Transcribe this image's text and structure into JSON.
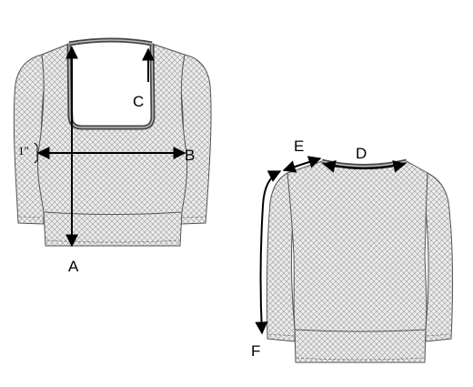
{
  "labels": {
    "a": "A",
    "b": "B",
    "c": "C",
    "d": "D",
    "e": "E",
    "f": "F",
    "one_inch": "1\""
  },
  "colors": {
    "outline": "#555555",
    "fabric": "#e9e9e9",
    "mesh": "#8a8a8a",
    "arrow": "#000000",
    "stitch": "#666666"
  }
}
